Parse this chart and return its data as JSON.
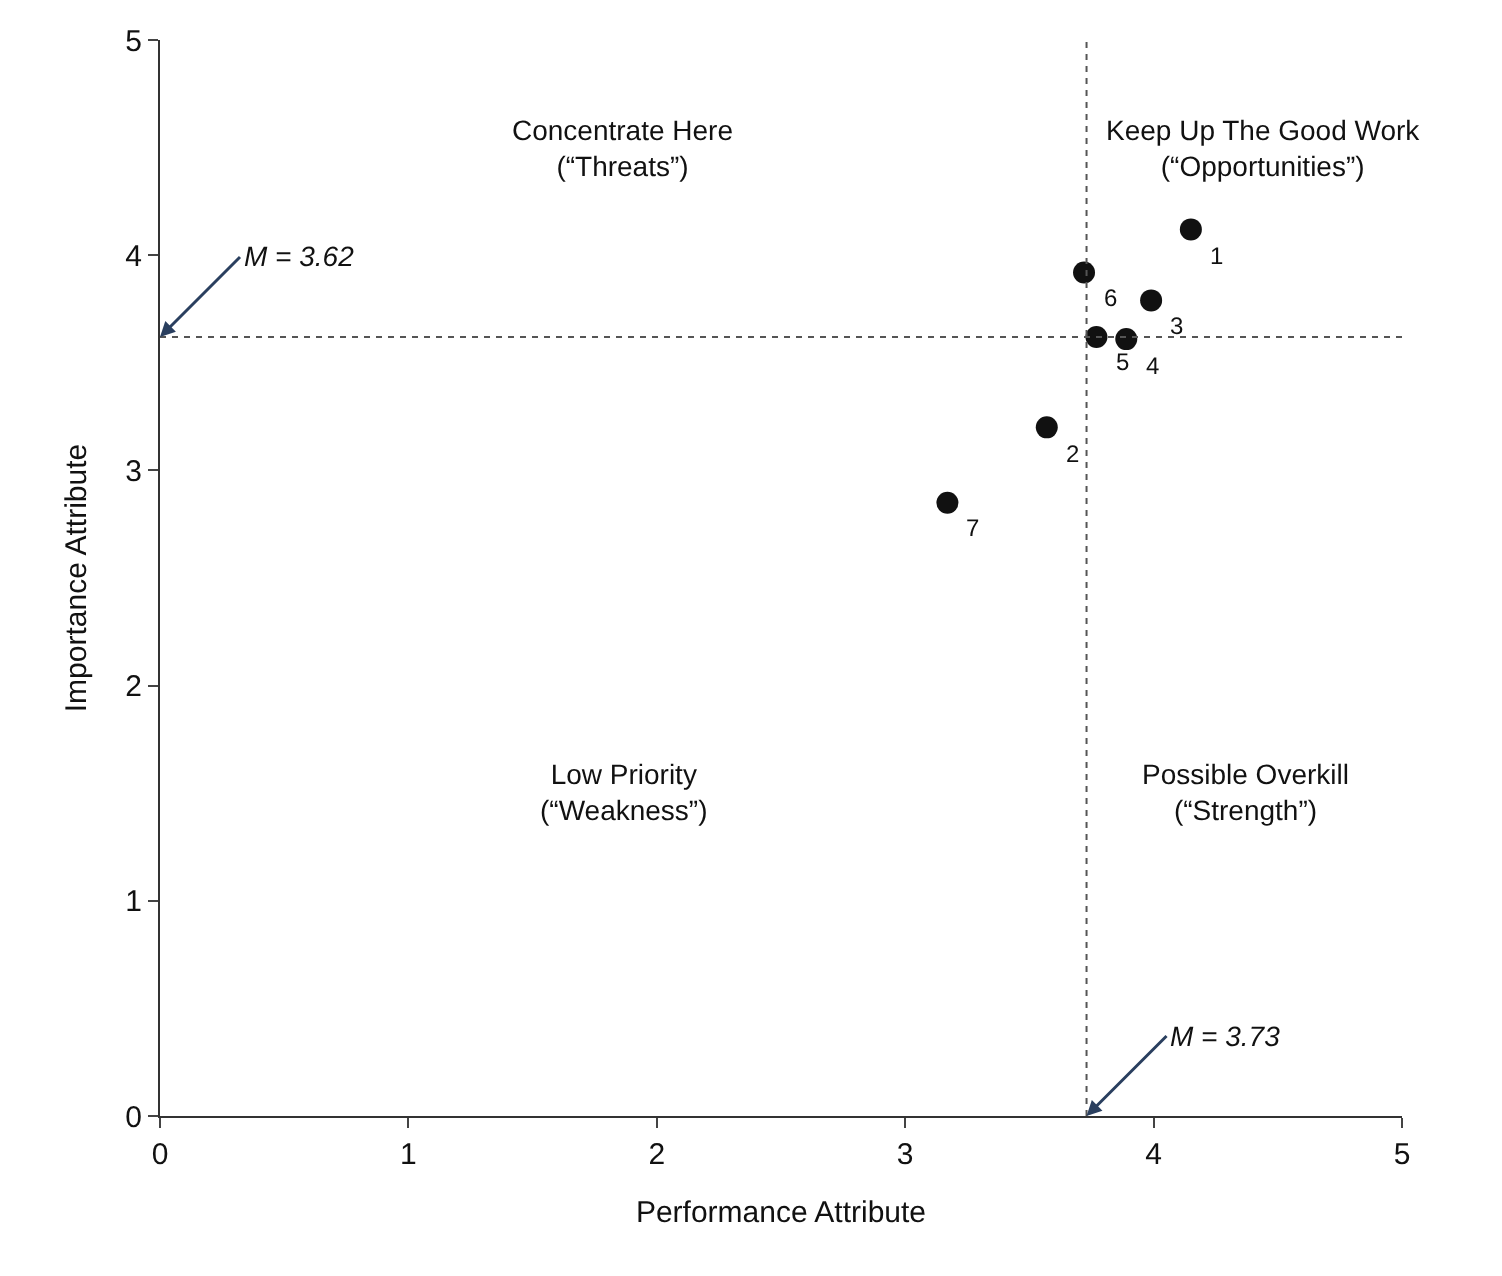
{
  "chart_data": {
    "type": "scatter",
    "xlabel": "Performance Attribute",
    "ylabel": "Importance Attribute",
    "x": [
      4.15,
      3.57,
      3.99,
      3.89,
      3.77,
      3.72,
      3.17
    ],
    "values": [
      4.12,
      3.2,
      3.79,
      3.61,
      3.62,
      3.92,
      2.85
    ],
    "color": "#111111",
    "marker": "circle",
    "grid": false,
    "xlim": [
      0,
      5
    ],
    "xticks": [
      0,
      1,
      2,
      3,
      4,
      5
    ],
    "ylim": [
      0,
      5
    ],
    "yticks": [
      0,
      1,
      2,
      3,
      4,
      5
    ],
    "ref_lines": [
      {
        "axis": "y",
        "value": 3.62,
        "label": "M = 3.62",
        "color": "#555555",
        "line_style": "dotted"
      },
      {
        "axis": "x",
        "value": 3.73,
        "label": "M = 3.73",
        "color": "#555555",
        "line_style": "dotted"
      }
    ],
    "annotations": [
      "Concentrate Here\n(“Threats”)",
      "Keep Up The Good Work\n(“Opportunities”)",
      "Low Priority\n(“Weakness”)",
      "Possible Overkill\n(“Strength”)",
      {
        "text": "1",
        "x": 4.15,
        "y": 4.12
      },
      {
        "text": "2",
        "x": 3.57,
        "y": 3.2
      },
      {
        "text": "3",
        "x": 3.99,
        "y": 3.79
      },
      {
        "text": "4",
        "x": 3.89,
        "y": 3.61
      },
      {
        "text": "5",
        "x": 3.77,
        "y": 3.62
      },
      {
        "text": "6",
        "x": 3.72,
        "y": 3.92
      },
      {
        "text": "7",
        "x": 3.17,
        "y": 2.85
      }
    ]
  }
}
